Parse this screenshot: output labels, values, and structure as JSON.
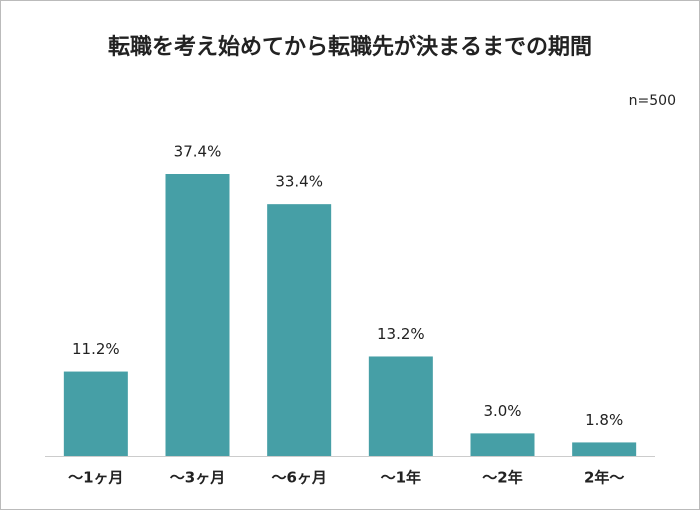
{
  "chart_data": {
    "type": "bar",
    "title": "転職を考え始めてから転職先が決まるまでの期間",
    "annotation": "n=500",
    "categories": [
      "～1ヶ月",
      "～3ヶ月",
      "～6ヶ月",
      "～1年",
      "～2年",
      "2年～"
    ],
    "values": [
      11.2,
      37.4,
      33.4,
      13.2,
      3.0,
      1.8
    ],
    "value_labels": [
      "11.2%",
      "37.4%",
      "33.4%",
      "13.2%",
      "3.0%",
      "1.8%"
    ],
    "color": "#469fa6"
  }
}
